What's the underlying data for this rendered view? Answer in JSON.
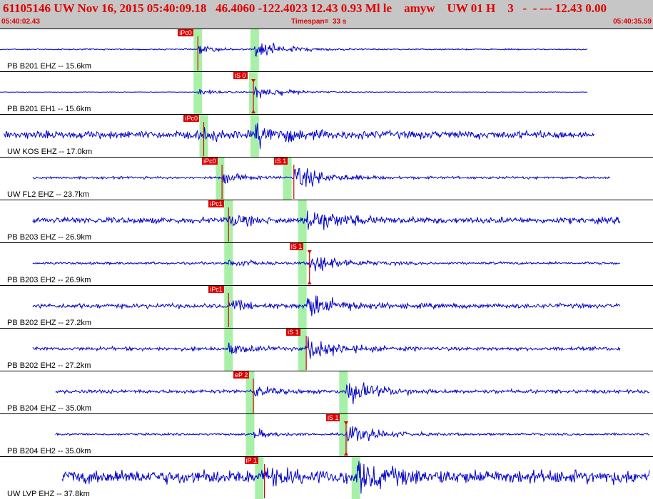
{
  "header": {
    "title": "61105146 UW Nov 16, 2015 05:40:09.18   46.4060 -122.4023 12.43 0.93 Ml le    amyw    UW 01 H    3   -  - --- 12.43 0.00",
    "start_time": "05:40:02.43",
    "timespan": "Timespan=  33 s",
    "end_time": "05:40:35.59"
  },
  "colors": {
    "trace": "#0000cc",
    "pick": "#e00000",
    "pick_window": "#a8f0a8",
    "header_bg": "#c6c6c6",
    "header_text": "#e00000"
  },
  "channels": [
    {
      "label": "PB B201 EHZ -- 15.6km",
      "start": 0.0,
      "end": 0.9,
      "amp": 0.6,
      "noise": 0.04,
      "p": 0.303,
      "s": 0.39,
      "windows": [
        0.303,
        0.39
      ],
      "picks": [
        {
          "text": "iPc0",
          "pos": 0.303
        }
      ]
    },
    {
      "label": "PB B201 EH1 -- 15.6km",
      "start": 0.0,
      "end": 0.9,
      "amp": 0.5,
      "noise": 0.02,
      "p": 0.303,
      "s": 0.388,
      "windows": [
        0.303,
        0.388
      ],
      "picks": [
        {
          "text": "iS 0",
          "pos": 0.388,
          "tri": true
        }
      ]
    },
    {
      "label": "UW KOS EHZ -- 17.0km",
      "start": 0.006,
      "end": 0.91,
      "amp": 0.7,
      "noise": 0.25,
      "p": 0.312,
      "s": 0.39,
      "windows": [
        0.312,
        0.39
      ],
      "picks": [
        {
          "text": "iPc0",
          "pos": 0.312
        }
      ]
    },
    {
      "label": "UW FL2 EHZ -- 23.7km",
      "start": 0.05,
      "end": 0.935,
      "amp": 0.8,
      "noise": 0.08,
      "p": 0.34,
      "s": 0.45,
      "windows": [
        0.337,
        0.44
      ],
      "picks": [
        {
          "text": "iPc0",
          "pos": 0.34
        },
        {
          "text": "iS 1",
          "pos": 0.45
        }
      ]
    },
    {
      "label": "PB B203 EHZ -- 26.9km",
      "start": 0.05,
      "end": 0.95,
      "amp": 0.8,
      "noise": 0.2,
      "p": 0.35,
      "s": 0.47,
      "windows": [
        0.35,
        0.463
      ],
      "picks": [
        {
          "text": "iPc1",
          "pos": 0.35
        }
      ]
    },
    {
      "label": "PB B203 EH2 -- 26.9km",
      "start": 0.05,
      "end": 0.95,
      "amp": 0.7,
      "noise": 0.08,
      "p": 0.35,
      "s": 0.474,
      "windows": [
        0.35,
        0.463
      ],
      "picks": [
        {
          "text": "iS 1",
          "pos": 0.474,
          "tri": true
        }
      ]
    },
    {
      "label": "PB B202 EHZ -- 27.2km",
      "start": 0.05,
      "end": 0.95,
      "amp": 0.8,
      "noise": 0.15,
      "p": 0.35,
      "s": 0.47,
      "windows": [
        0.35,
        0.463
      ],
      "picks": [
        {
          "text": "iPc1",
          "pos": 0.35
        }
      ]
    },
    {
      "label": "PB B202 EH2 -- 27.2km",
      "start": 0.05,
      "end": 0.95,
      "amp": 0.8,
      "noise": 0.12,
      "p": 0.35,
      "s": 0.469,
      "windows": [
        0.35,
        0.463
      ],
      "picks": [
        {
          "text": "iS 1",
          "pos": 0.469
        }
      ]
    },
    {
      "label": "PB B204 EHZ -- 35.0km",
      "start": 0.085,
      "end": 0.995,
      "amp": 0.8,
      "noise": 0.12,
      "p": 0.388,
      "s": 0.53,
      "windows": [
        0.383,
        0.526
      ],
      "picks": [
        {
          "text": "eP 2",
          "pos": 0.388
        }
      ]
    },
    {
      "label": "PB B204 EH2 -- 35.0km",
      "start": 0.085,
      "end": 0.995,
      "amp": 0.7,
      "noise": 0.07,
      "p": 0.388,
      "s": 0.53,
      "windows": [
        0.383,
        0.526
      ],
      "picks": [
        {
          "text": "iS 1",
          "pos": 0.53,
          "tri": true
        }
      ]
    },
    {
      "label": "UW LVP EHZ -- 37.8km",
      "start": 0.095,
      "end": 0.995,
      "amp": 0.8,
      "noise": 0.45,
      "p": 0.405,
      "s": 0.545,
      "windows": [
        0.397,
        0.545
      ],
      "picks": [
        {
          "text": "iP 1",
          "pos": 0.405
        }
      ]
    }
  ]
}
